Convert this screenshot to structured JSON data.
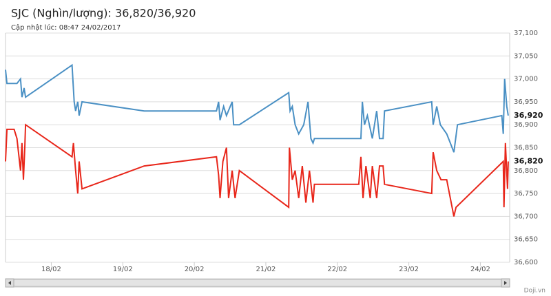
{
  "chart_data": {
    "type": "line",
    "title": "SJC (Nghìn/lượng): 36,820/36,920",
    "subtitle": "Cập nhật lúc: 08:47 24/02/2017",
    "credit": "Doji.vn",
    "xlim": [
      17.36,
      24.41
    ],
    "xticks": [
      {
        "value": 18,
        "label": "18/02"
      },
      {
        "value": 19,
        "label": "19/02"
      },
      {
        "value": 20,
        "label": "20/02"
      },
      {
        "value": 21,
        "label": "21/02"
      },
      {
        "value": 22,
        "label": "22/02"
      },
      {
        "value": 23,
        "label": "23/02"
      },
      {
        "value": 24,
        "label": "24/02"
      }
    ],
    "ylim": [
      36600,
      37100
    ],
    "yticks": [
      {
        "value": 36600,
        "label": "36,600"
      },
      {
        "value": 36650,
        "label": "36,650"
      },
      {
        "value": 36700,
        "label": "36,700"
      },
      {
        "value": 36750,
        "label": "36,750"
      },
      {
        "value": 36800,
        "label": "36,800"
      },
      {
        "value": 36850,
        "label": "36,850"
      },
      {
        "value": 36900,
        "label": "36,900"
      },
      {
        "value": 36950,
        "label": "36,950"
      },
      {
        "value": 37000,
        "label": "37,000"
      },
      {
        "value": 37050,
        "label": "37,050"
      },
      {
        "value": 37100,
        "label": "37,100"
      }
    ],
    "grid": true,
    "series": [
      {
        "color": "#4a90c4",
        "x": [
          17.36,
          17.38,
          17.52,
          17.57,
          17.59,
          17.62,
          17.64,
          18.29,
          18.32,
          18.34,
          18.37,
          18.39,
          18.43,
          19.3,
          20.31,
          20.34,
          20.36,
          20.41,
          20.45,
          20.53,
          20.55,
          20.63,
          21.32,
          21.34,
          21.37,
          21.41,
          21.46,
          21.53,
          21.59,
          21.63,
          21.66,
          21.68,
          22.33,
          22.35,
          22.38,
          22.42,
          22.49,
          22.55,
          22.59,
          22.64,
          22.66,
          23.32,
          23.34,
          23.39,
          23.44,
          23.53,
          23.58,
          23.63,
          23.68,
          24.3,
          24.32,
          24.34,
          24.37,
          24.39
        ],
        "values": [
          37020,
          36990,
          36990,
          37000,
          36960,
          36980,
          36960,
          37030,
          36950,
          36930,
          36950,
          36920,
          36950,
          36930,
          36930,
          36950,
          36910,
          36940,
          36920,
          36950,
          36900,
          36900,
          36970,
          36930,
          36940,
          36900,
          36880,
          36900,
          36950,
          36870,
          36860,
          36870,
          36870,
          36950,
          36900,
          36920,
          36870,
          36930,
          36870,
          36870,
          36930,
          36950,
          36900,
          36940,
          36900,
          36880,
          36860,
          36840,
          36900,
          36920,
          36880,
          37000,
          36940,
          36920
        ]
      },
      {
        "color": "#e8261a",
        "x": [
          17.36,
          17.38,
          17.48,
          17.52,
          17.57,
          17.59,
          17.61,
          17.63,
          17.64,
          18.29,
          18.31,
          18.34,
          18.37,
          18.39,
          18.43,
          19.3,
          20.31,
          20.34,
          20.36,
          20.4,
          20.45,
          20.48,
          20.53,
          20.57,
          20.63,
          21.32,
          21.33,
          21.37,
          21.41,
          21.46,
          21.51,
          21.56,
          21.61,
          21.66,
          21.68,
          22.3,
          22.33,
          22.36,
          22.4,
          22.46,
          22.49,
          22.55,
          22.59,
          22.64,
          22.66,
          23.32,
          23.34,
          23.39,
          23.45,
          23.53,
          23.58,
          23.63,
          23.66,
          24.32,
          24.33,
          24.35,
          24.38,
          24.39
        ],
        "values": [
          36820,
          36890,
          36890,
          36870,
          36800,
          36860,
          36780,
          36850,
          36900,
          36830,
          36860,
          36800,
          36750,
          36820,
          36760,
          36810,
          36830,
          36790,
          36740,
          36820,
          36850,
          36740,
          36800,
          36740,
          36800,
          36720,
          36850,
          36780,
          36800,
          36740,
          36810,
          36730,
          36800,
          36730,
          36770,
          36770,
          36830,
          36740,
          36810,
          36740,
          36810,
          36740,
          36810,
          36810,
          36770,
          36750,
          36840,
          36800,
          36780,
          36780,
          36740,
          36700,
          36720,
          36820,
          36720,
          36860,
          36760,
          36820
        ]
      }
    ],
    "annotations": [
      {
        "value": 36920,
        "label": "36,920"
      },
      {
        "value": 36820,
        "label": "36,820"
      }
    ]
  }
}
